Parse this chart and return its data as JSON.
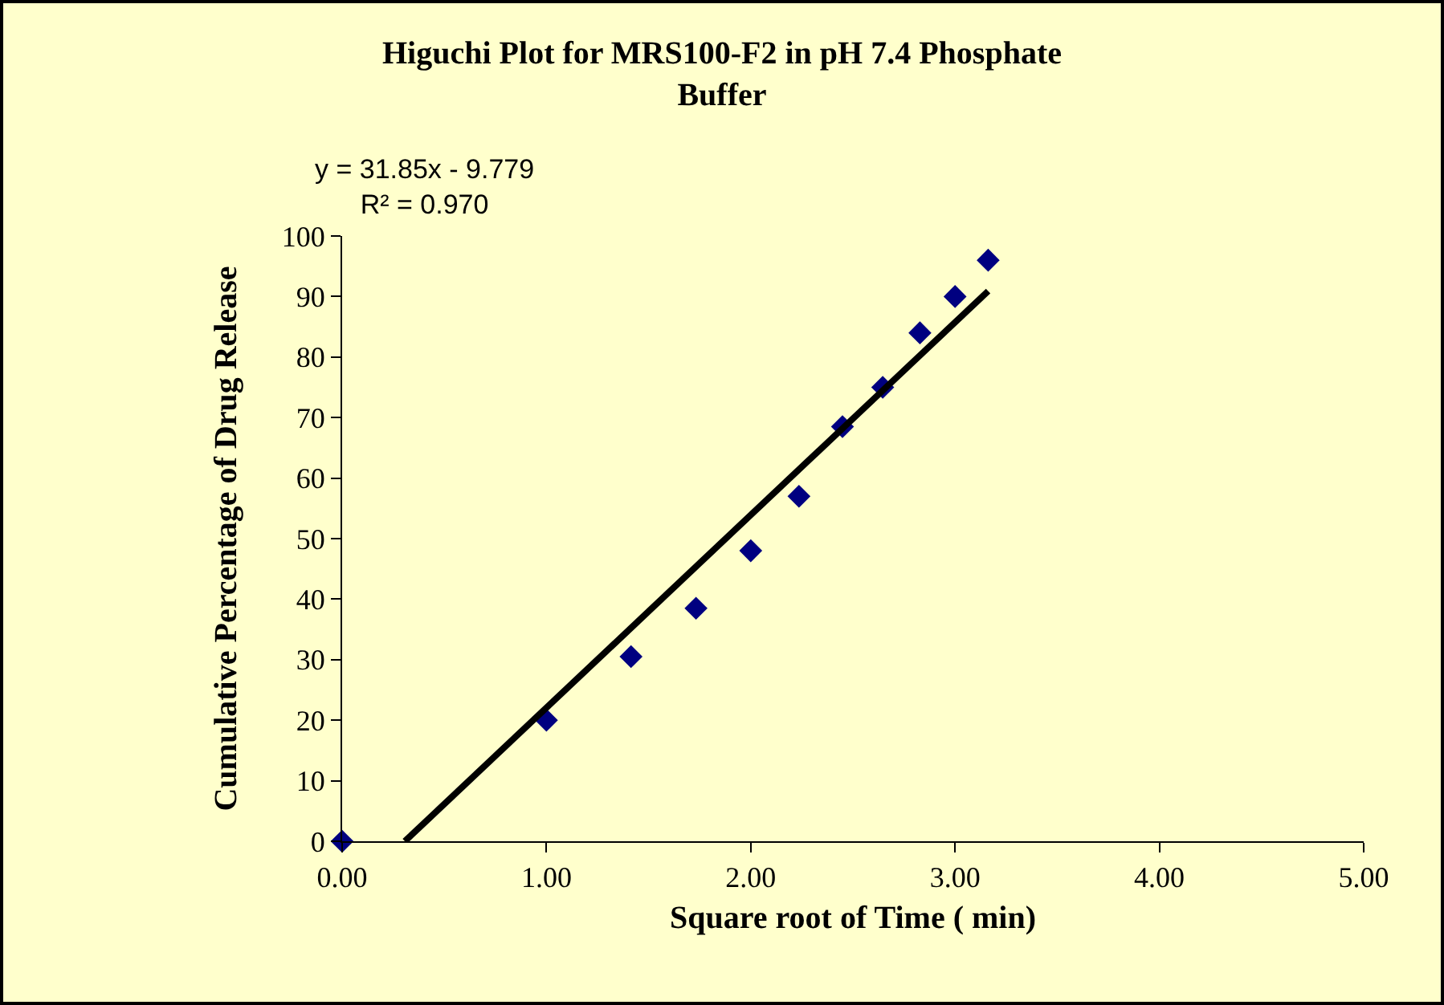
{
  "chart_data": {
    "type": "scatter",
    "title": "Higuchi Plot for MRS100-F2 in pH 7.4 Phosphate\nBuffer",
    "xlabel": "Square root of Time ( min)",
    "ylabel": "Cumulative Percentage of Drug Release",
    "x": [
      0,
      1,
      1.414,
      1.732,
      2,
      2.236,
      2.449,
      2.646,
      2.828,
      3,
      3.162
    ],
    "series": [
      {
        "type": "scatter",
        "color": "#000080",
        "marker": "diamond",
        "values": [
          0,
          20,
          30.5,
          38.5,
          48,
          57,
          68.5,
          75,
          84,
          90,
          96
        ]
      },
      {
        "type": "line",
        "color": "#000000",
        "marker": "none",
        "line_style": "solid",
        "x": [
          0.307,
          3.162
        ],
        "values": [
          0,
          90.9
        ]
      }
    ],
    "annotations": [
      "y = 31.85x - 9.779\nR² = 0.970"
    ],
    "xlim": [
      0,
      5
    ],
    "xticks": [
      {
        "value": 0,
        "label": "0.00"
      },
      {
        "value": 1,
        "label": "1.00"
      },
      {
        "value": 2,
        "label": "2.00"
      },
      {
        "value": 3,
        "label": "3.00"
      },
      {
        "value": 4,
        "label": "4.00"
      },
      {
        "value": 5,
        "label": "5.00"
      }
    ],
    "ylim": [
      0,
      100
    ],
    "yticks": [
      0,
      10,
      20,
      30,
      40,
      50,
      60,
      70,
      80,
      90,
      100
    ],
    "grid": false
  }
}
